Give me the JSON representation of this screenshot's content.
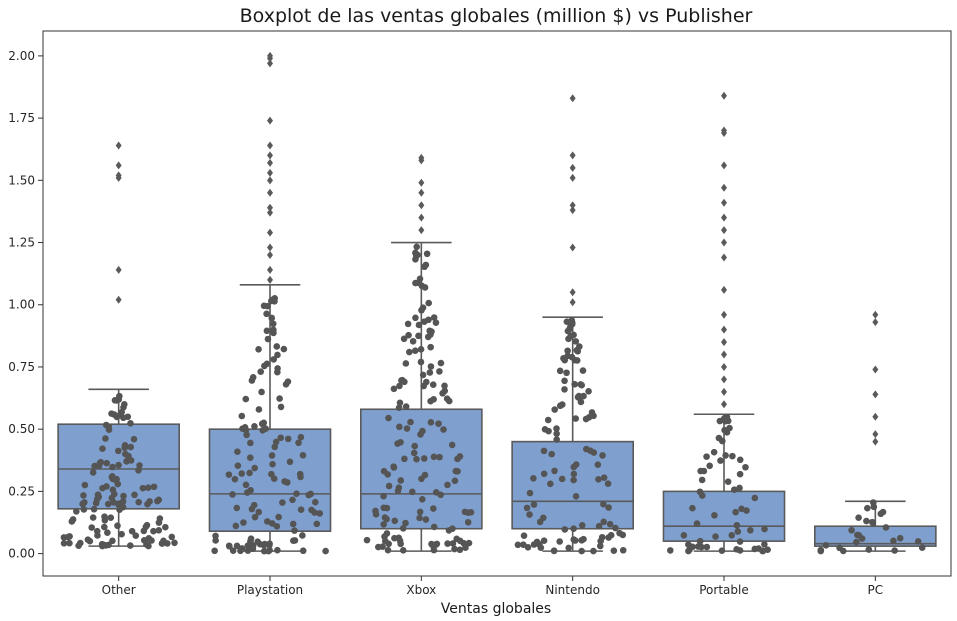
{
  "chart_data": {
    "type": "box",
    "title": "Boxplot de las ventas globales (million $) vs Publisher",
    "xlabel": "Ventas globales",
    "ylabel": "",
    "ylim": [
      -0.09,
      2.1
    ],
    "yticks": [
      "0.00",
      "0.25",
      "0.50",
      "0.75",
      "1.00",
      "1.25",
      "1.50",
      "1.75",
      "2.00"
    ],
    "categories": [
      "Other",
      "Playstation",
      "Xbox",
      "Nintendo",
      "Portable",
      "PC"
    ],
    "box_color": "#7fa0cf",
    "line_color": "#5a5a5a",
    "point_color": "#555555",
    "boxes": [
      {
        "category": "Other",
        "q1": 0.18,
        "median": 0.34,
        "q3": 0.52,
        "whisker_low": 0.03,
        "whisker_high": 0.66,
        "outliers": [
          1.02,
          1.14,
          1.51,
          1.52,
          1.56,
          1.64
        ]
      },
      {
        "category": "Playstation",
        "q1": 0.09,
        "median": 0.24,
        "q3": 0.5,
        "whisker_low": 0.01,
        "whisker_high": 1.08,
        "outliers": [
          1.1,
          1.14,
          1.2,
          1.23,
          1.29,
          1.37,
          1.39,
          1.45,
          1.5,
          1.53,
          1.57,
          1.6,
          1.64,
          1.74,
          1.97,
          1.99,
          2.0
        ]
      },
      {
        "category": "Xbox",
        "q1": 0.1,
        "median": 0.24,
        "q3": 0.58,
        "whisker_low": 0.01,
        "whisker_high": 1.25,
        "outliers": [
          1.3,
          1.35,
          1.4,
          1.45,
          1.49,
          1.58,
          1.59
        ]
      },
      {
        "category": "Nintendo",
        "q1": 0.1,
        "median": 0.21,
        "q3": 0.45,
        "whisker_low": 0.01,
        "whisker_high": 0.95,
        "outliers": [
          1.01,
          1.05,
          1.23,
          1.38,
          1.4,
          1.51,
          1.55,
          1.6,
          1.83
        ]
      },
      {
        "category": "Portable",
        "q1": 0.05,
        "median": 0.11,
        "q3": 0.25,
        "whisker_low": 0.01,
        "whisker_high": 0.56,
        "outliers": [
          0.6,
          0.65,
          0.7,
          0.75,
          0.8,
          0.85,
          0.9,
          0.96,
          1.06,
          1.19,
          1.25,
          1.3,
          1.35,
          1.41,
          1.47,
          1.56,
          1.69,
          1.7,
          1.84
        ]
      },
      {
        "category": "PC",
        "q1": 0.03,
        "median": 0.04,
        "q3": 0.11,
        "whisker_low": 0.01,
        "whisker_high": 0.21,
        "outliers": [
          0.45,
          0.48,
          0.55,
          0.64,
          0.74,
          0.93,
          0.96
        ]
      }
    ]
  }
}
